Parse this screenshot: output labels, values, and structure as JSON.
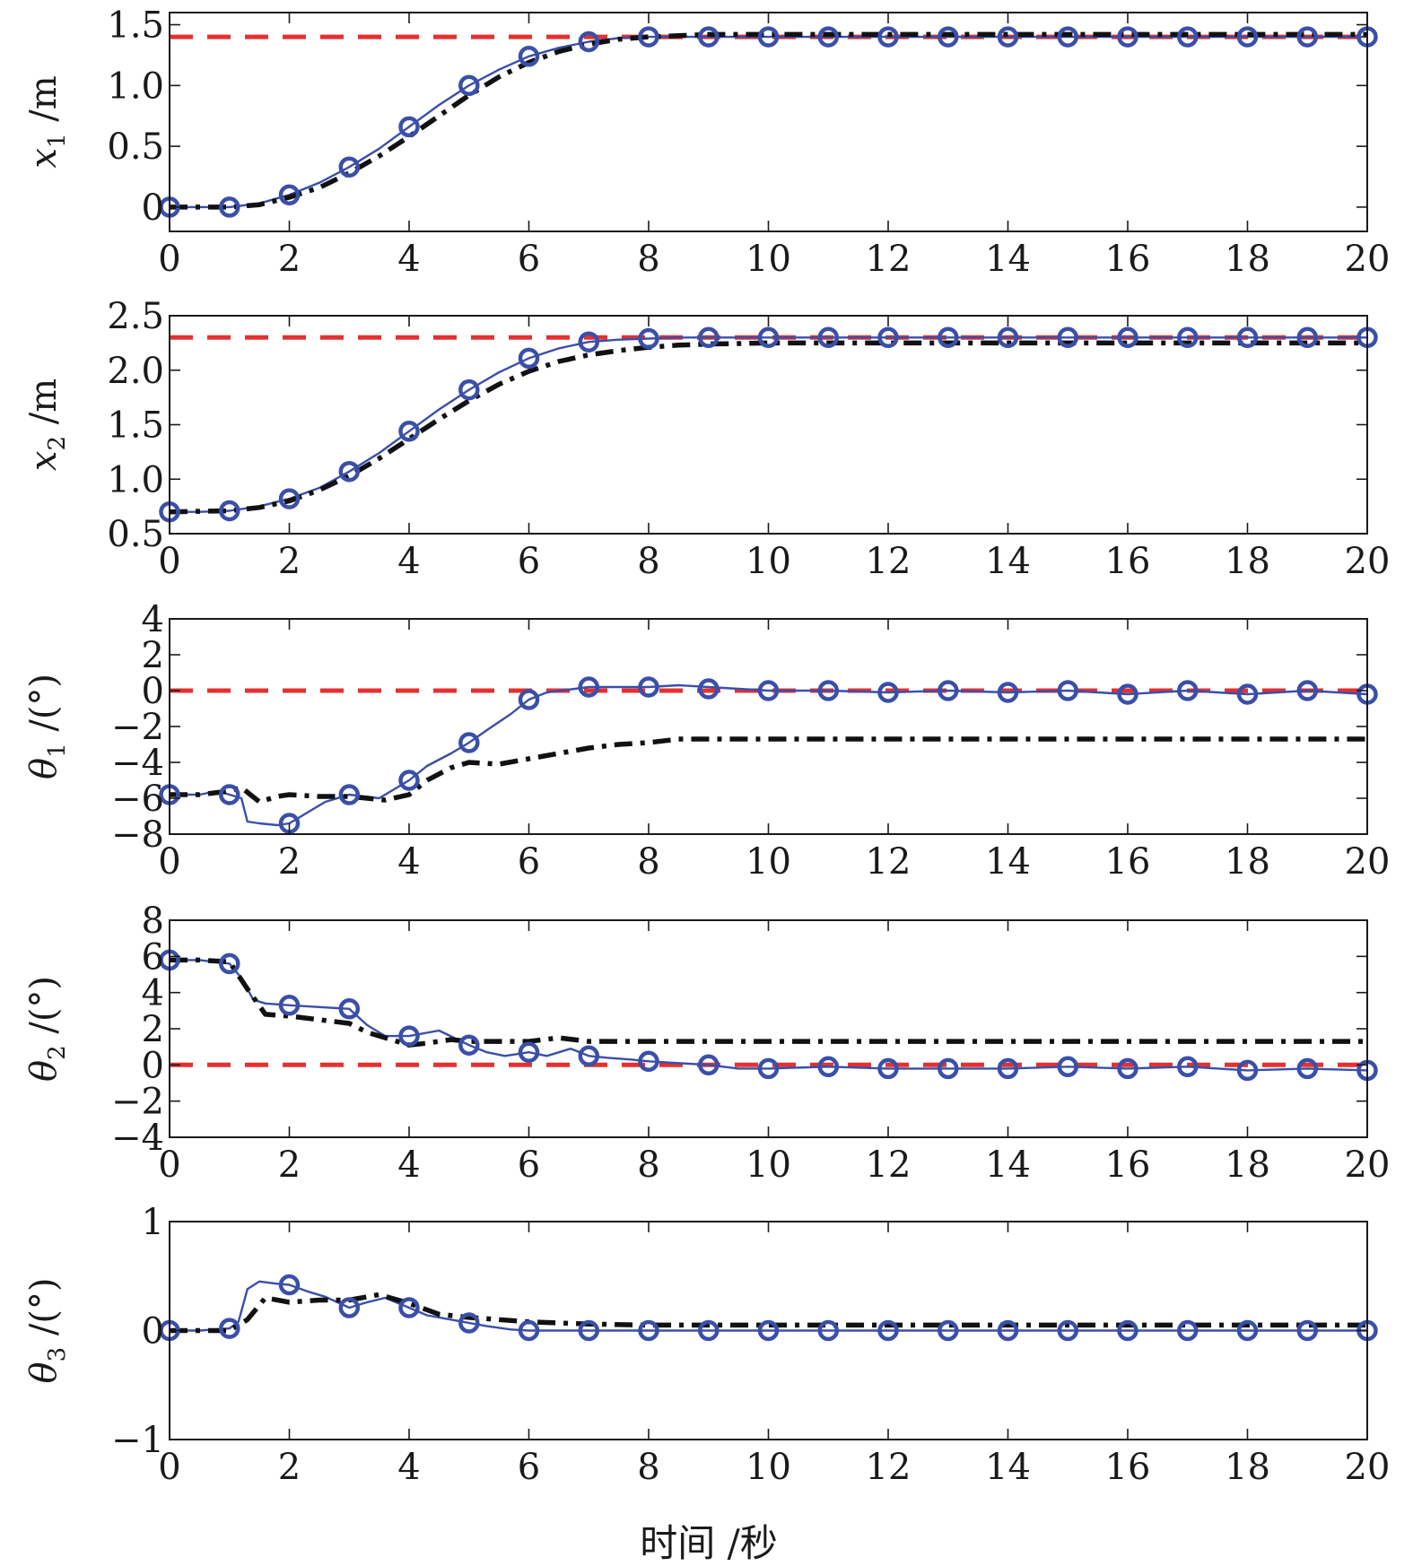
{
  "x_axis_label": "时间 /秒",
  "colors": {
    "reference": "#e53030",
    "controlled": "#3a4fa8",
    "compare": "#111111",
    "axes": "#1a1a1a"
  },
  "chart_data": [
    {
      "type": "line",
      "ylabel_var": "x",
      "ylabel_sub": "1",
      "ylabel_unit": " /m",
      "xlim": [
        0,
        20
      ],
      "ylim": [
        -0.2,
        1.6
      ],
      "xticks": [
        0,
        2,
        4,
        6,
        8,
        10,
        12,
        14,
        16,
        18,
        20
      ],
      "yticks": [
        0,
        0.5,
        1.0,
        1.5
      ],
      "ytick_labels": [
        "0",
        "0.5",
        "1.0",
        "1.5"
      ],
      "grid": false,
      "series": [
        {
          "style": "dashed-red",
          "x": [
            0,
            20
          ],
          "y": [
            1.4,
            1.4
          ]
        },
        {
          "style": "solid-blue-circle",
          "x": [
            0,
            0.5,
            1,
            1.5,
            2,
            2.5,
            3,
            3.5,
            4,
            4.5,
            5,
            5.5,
            6,
            6.5,
            7,
            7.5,
            8,
            8.5,
            9,
            10,
            11,
            12,
            13,
            14,
            15,
            16,
            17,
            18,
            19,
            20
          ],
          "y": [
            0,
            0,
            0,
            0.03,
            0.1,
            0.2,
            0.33,
            0.48,
            0.66,
            0.84,
            1.0,
            1.13,
            1.24,
            1.31,
            1.36,
            1.39,
            1.4,
            1.4,
            1.4,
            1.4,
            1.4,
            1.4,
            1.4,
            1.4,
            1.4,
            1.4,
            1.4,
            1.4,
            1.4,
            1.4
          ],
          "markers_x": [
            0,
            1,
            2,
            3,
            4,
            5,
            6,
            7,
            8,
            9,
            10,
            11,
            12,
            13,
            14,
            15,
            16,
            17,
            18,
            19,
            20
          ],
          "markers_y": [
            0,
            0,
            0.1,
            0.33,
            0.66,
            1.0,
            1.24,
            1.36,
            1.4,
            1.4,
            1.4,
            1.4,
            1.4,
            1.4,
            1.4,
            1.4,
            1.4,
            1.4,
            1.4,
            1.4,
            1.4
          ]
        },
        {
          "style": "dashdot-black",
          "x": [
            0,
            1,
            1.5,
            2,
            2.5,
            3,
            3.5,
            4,
            4.5,
            5,
            5.5,
            6,
            6.5,
            7,
            7.5,
            8,
            8.5,
            9,
            10,
            20
          ],
          "y": [
            0,
            0,
            0.02,
            0.08,
            0.16,
            0.28,
            0.42,
            0.58,
            0.75,
            0.92,
            1.07,
            1.19,
            1.28,
            1.34,
            1.38,
            1.4,
            1.41,
            1.42,
            1.42,
            1.42
          ]
        }
      ]
    },
    {
      "type": "line",
      "ylabel_var": "x",
      "ylabel_sub": "2",
      "ylabel_unit": " /m",
      "xlim": [
        0,
        20
      ],
      "ylim": [
        0.5,
        2.5
      ],
      "xticks": [
        0,
        2,
        4,
        6,
        8,
        10,
        12,
        14,
        16,
        18,
        20
      ],
      "yticks": [
        0.5,
        1.0,
        1.5,
        2.0,
        2.5
      ],
      "ytick_labels": [
        "0.5",
        "1.0",
        "1.5",
        "2.0",
        "2.5"
      ],
      "grid": false,
      "series": [
        {
          "style": "dashed-red",
          "x": [
            0,
            20
          ],
          "y": [
            2.3,
            2.3
          ]
        },
        {
          "style": "solid-blue-circle",
          "x": [
            0,
            0.5,
            1,
            1.5,
            2,
            2.5,
            3,
            3.5,
            4,
            4.5,
            5,
            5.5,
            6,
            6.5,
            7,
            7.5,
            8,
            8.5,
            9,
            10,
            11,
            12,
            13,
            14,
            15,
            16,
            17,
            18,
            19,
            20
          ],
          "y": [
            0.7,
            0.7,
            0.71,
            0.75,
            0.82,
            0.92,
            1.07,
            1.24,
            1.44,
            1.64,
            1.82,
            1.98,
            2.11,
            2.2,
            2.26,
            2.28,
            2.29,
            2.3,
            2.3,
            2.3,
            2.3,
            2.3,
            2.3,
            2.3,
            2.3,
            2.3,
            2.3,
            2.3,
            2.3,
            2.3
          ],
          "markers_x": [
            0,
            1,
            2,
            3,
            4,
            5,
            6,
            7,
            8,
            9,
            10,
            11,
            12,
            13,
            14,
            15,
            16,
            17,
            18,
            19,
            20
          ],
          "markers_y": [
            0.7,
            0.71,
            0.82,
            1.07,
            1.44,
            1.82,
            2.11,
            2.26,
            2.29,
            2.3,
            2.3,
            2.3,
            2.3,
            2.3,
            2.3,
            2.3,
            2.3,
            2.3,
            2.3,
            2.3,
            2.3
          ]
        },
        {
          "style": "dashdot-black",
          "x": [
            0,
            1,
            1.5,
            2,
            2.5,
            3,
            3.5,
            4,
            4.5,
            5,
            5.5,
            6,
            6.5,
            7,
            7.5,
            8,
            8.5,
            9,
            10,
            20
          ],
          "y": [
            0.7,
            0.71,
            0.74,
            0.8,
            0.9,
            1.03,
            1.19,
            1.37,
            1.55,
            1.72,
            1.87,
            1.99,
            2.08,
            2.14,
            2.18,
            2.21,
            2.23,
            2.24,
            2.25,
            2.25
          ]
        }
      ]
    },
    {
      "type": "line",
      "ylabel_var": "θ",
      "ylabel_sub": "1",
      "ylabel_unit": " /(°)",
      "xlim": [
        0,
        20
      ],
      "ylim": [
        -8,
        4
      ],
      "xticks": [
        0,
        2,
        4,
        6,
        8,
        10,
        12,
        14,
        16,
        18,
        20
      ],
      "yticks": [
        -8,
        -6,
        -4,
        -2,
        0,
        2,
        4
      ],
      "ytick_labels": [
        "−8",
        "−6",
        "−4",
        "−2",
        "0",
        "2",
        "4"
      ],
      "grid": false,
      "series": [
        {
          "style": "dashed-red",
          "x": [
            0,
            20
          ],
          "y": [
            0,
            0
          ]
        },
        {
          "style": "solid-blue-circle",
          "x": [
            0,
            0.5,
            0.8,
            1,
            1.2,
            1.3,
            1.5,
            1.8,
            2,
            2.3,
            2.6,
            3,
            3.5,
            4,
            4.3,
            4.7,
            5,
            5.3,
            5.7,
            6,
            6.3,
            7,
            7.5,
            8,
            8.5,
            9,
            9.5,
            10,
            11,
            12,
            13,
            14,
            15,
            16,
            17,
            18,
            19,
            20
          ],
          "y": [
            -5.8,
            -5.8,
            -5.6,
            -5.8,
            -6.0,
            -7.3,
            -7.4,
            -7.5,
            -7.4,
            -6.8,
            -6.2,
            -5.8,
            -6.0,
            -5.0,
            -4.2,
            -3.5,
            -2.9,
            -2.2,
            -1.3,
            -0.5,
            -0.1,
            0.2,
            0.2,
            0.2,
            0.3,
            0.2,
            0.1,
            0.0,
            0.0,
            -0.1,
            0.0,
            -0.1,
            0.0,
            -0.2,
            0.0,
            -0.2,
            0.0,
            -0.2
          ],
          "markers_x": [
            0,
            1,
            2,
            3,
            4,
            5,
            6,
            7,
            8,
            9,
            10,
            11,
            12,
            13,
            14,
            15,
            16,
            17,
            18,
            19,
            20
          ],
          "markers_y": [
            -5.8,
            -5.8,
            -7.4,
            -5.8,
            -5.0,
            -2.9,
            -0.5,
            0.2,
            0.2,
            0.1,
            0.0,
            0.0,
            -0.1,
            0.0,
            -0.1,
            0.0,
            -0.2,
            0.0,
            -0.2,
            0.0,
            -0.2
          ]
        },
        {
          "style": "dashdot-black",
          "x": [
            0,
            0.5,
            1,
            1.2,
            1.5,
            1.8,
            2,
            2.5,
            3,
            3.3,
            3.6,
            4,
            4.3,
            4.7,
            5,
            5.5,
            6,
            6.5,
            7,
            7.5,
            8,
            8.5,
            9,
            10,
            20
          ],
          "y": [
            -5.8,
            -5.8,
            -5.6,
            -5.4,
            -6.2,
            -5.9,
            -5.8,
            -5.9,
            -5.9,
            -6.0,
            -6.1,
            -5.8,
            -5.0,
            -4.3,
            -4.0,
            -4.1,
            -3.8,
            -3.5,
            -3.2,
            -3.0,
            -2.9,
            -2.7,
            -2.7,
            -2.7,
            -2.7
          ]
        }
      ]
    },
    {
      "type": "line",
      "ylabel_var": "θ",
      "ylabel_sub": "2",
      "ylabel_unit": " /(°)",
      "xlim": [
        0,
        20
      ],
      "ylim": [
        -4,
        8
      ],
      "xticks": [
        0,
        2,
        4,
        6,
        8,
        10,
        12,
        14,
        16,
        18,
        20
      ],
      "yticks": [
        -4,
        -2,
        0,
        2,
        4,
        6,
        8
      ],
      "ytick_labels": [
        "−4",
        "−2",
        "0",
        "2",
        "4",
        "6",
        "8"
      ],
      "grid": false,
      "series": [
        {
          "style": "dashed-red",
          "x": [
            0,
            20
          ],
          "y": [
            0,
            0
          ]
        },
        {
          "style": "solid-blue-circle",
          "x": [
            0,
            0.5,
            1,
            1.2,
            1.4,
            1.6,
            2,
            2.5,
            3,
            3.3,
            3.6,
            4,
            4.5,
            5,
            5.3,
            5.6,
            6,
            6.3,
            6.7,
            7,
            7.3,
            7.7,
            8,
            8.5,
            9,
            9.5,
            10,
            11,
            12,
            13,
            14,
            15,
            16,
            17,
            18,
            19,
            20
          ],
          "y": [
            5.8,
            5.8,
            5.6,
            4.8,
            3.6,
            3.4,
            3.3,
            3.2,
            3.1,
            2.2,
            1.6,
            1.6,
            1.9,
            1.1,
            0.7,
            0.5,
            0.7,
            0.5,
            0.9,
            0.5,
            0.4,
            0.3,
            0.2,
            0.1,
            0.0,
            -0.2,
            -0.2,
            -0.1,
            -0.2,
            -0.2,
            -0.2,
            -0.1,
            -0.2,
            -0.1,
            -0.3,
            -0.2,
            -0.3
          ],
          "markers_x": [
            0,
            1,
            2,
            3,
            4,
            5,
            6,
            7,
            8,
            9,
            10,
            11,
            12,
            13,
            14,
            15,
            16,
            17,
            18,
            19,
            20
          ],
          "markers_y": [
            5.8,
            5.6,
            3.3,
            3.1,
            1.6,
            1.1,
            0.7,
            0.5,
            0.2,
            0.0,
            -0.2,
            -0.1,
            -0.2,
            -0.2,
            -0.2,
            -0.1,
            -0.2,
            -0.1,
            -0.3,
            -0.2,
            -0.3
          ]
        },
        {
          "style": "dashdot-black",
          "x": [
            0,
            0.5,
            1,
            1.3,
            1.6,
            2,
            2.5,
            3,
            3.3,
            3.7,
            4,
            4.3,
            4.7,
            5,
            5.5,
            6,
            6.5,
            7,
            8,
            9,
            10,
            20
          ],
          "y": [
            5.8,
            5.8,
            5.7,
            4.2,
            2.8,
            2.7,
            2.5,
            2.3,
            1.8,
            1.4,
            1.1,
            1.2,
            1.4,
            1.3,
            1.3,
            1.3,
            1.5,
            1.3,
            1.3,
            1.3,
            1.3,
            1.3
          ]
        }
      ]
    },
    {
      "type": "line",
      "ylabel_var": "θ",
      "ylabel_sub": "3",
      "ylabel_unit": " /(°)",
      "xlim": [
        0,
        20
      ],
      "ylim": [
        -1,
        1
      ],
      "xticks": [
        0,
        2,
        4,
        6,
        8,
        10,
        12,
        14,
        16,
        18,
        20
      ],
      "yticks": [
        -1,
        0,
        1
      ],
      "ytick_labels": [
        "−1",
        "0",
        "1"
      ],
      "grid": false,
      "series": [
        {
          "style": "solid-blue-circle",
          "x": [
            0,
            0.5,
            1,
            1.15,
            1.3,
            1.5,
            1.8,
            2,
            2.3,
            2.6,
            3,
            3.3,
            3.6,
            4,
            4.3,
            4.7,
            5,
            5.3,
            5.7,
            6,
            6.5,
            7,
            8,
            9,
            10,
            20
          ],
          "y": [
            0,
            0,
            0.02,
            0.08,
            0.38,
            0.45,
            0.43,
            0.42,
            0.36,
            0.31,
            0.21,
            0.26,
            0.3,
            0.21,
            0.14,
            0.1,
            0.07,
            0.04,
            0.01,
            0.0,
            0.0,
            0.0,
            0.0,
            0.0,
            0.0,
            0.0
          ],
          "markers_x": [
            0,
            1,
            2,
            3,
            4,
            5,
            6,
            7,
            8,
            9,
            10,
            11,
            12,
            13,
            14,
            15,
            16,
            17,
            18,
            19,
            20
          ],
          "markers_y": [
            0,
            0.02,
            0.42,
            0.21,
            0.21,
            0.07,
            0.0,
            0.0,
            0.0,
            0.0,
            0.0,
            0.0,
            0.0,
            0.0,
            0.0,
            0.0,
            0.0,
            0.0,
            0.0,
            0.0,
            0.0
          ]
        },
        {
          "style": "dashdot-black",
          "x": [
            0,
            0.5,
            1,
            1.3,
            1.6,
            2,
            2.5,
            3,
            3.5,
            4,
            4.5,
            5,
            5.5,
            6,
            6.5,
            7,
            8,
            9,
            10,
            20
          ],
          "y": [
            0,
            0,
            0,
            0.1,
            0.3,
            0.26,
            0.28,
            0.28,
            0.33,
            0.25,
            0.15,
            0.12,
            0.1,
            0.08,
            0.07,
            0.06,
            0.05,
            0.05,
            0.05,
            0.05
          ]
        }
      ]
    }
  ]
}
